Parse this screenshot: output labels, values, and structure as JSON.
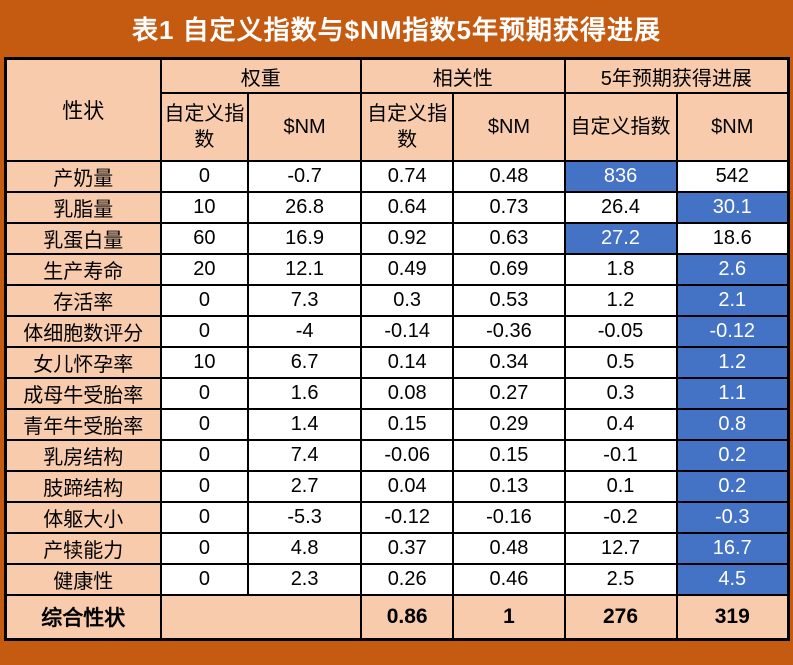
{
  "colors": {
    "page_background_orange": "#C55A11",
    "header_peach": "#F8CBAD",
    "highlight_blue": "#4472C4",
    "highlight_text": "#FFFFFF",
    "grid_border": "#000000",
    "title_text": "#FFFFFF"
  },
  "chart_data": {
    "type": "table",
    "title": "表1 自定义指数与$NM指数5年预期获得进展",
    "row_header": "性状",
    "column_groups": [
      "权重",
      "相关性",
      "5年预期获得进展"
    ],
    "subcolumns": [
      "自定义指数",
      "$NM",
      "自定义指数",
      "$NM",
      "自定义指数",
      "$NM"
    ],
    "rows": [
      {
        "trait": "产奶量",
        "weight_custom": "0",
        "weight_nm": "-0.7",
        "corr_custom": "0.74",
        "corr_nm": "0.48",
        "prog_custom": "836",
        "prog_nm": "542",
        "highlight": "prog_custom"
      },
      {
        "trait": "乳脂量",
        "weight_custom": "10",
        "weight_nm": "26.8",
        "corr_custom": "0.64",
        "corr_nm": "0.73",
        "prog_custom": "26.4",
        "prog_nm": "30.1",
        "highlight": "prog_nm"
      },
      {
        "trait": "乳蛋白量",
        "weight_custom": "60",
        "weight_nm": "16.9",
        "corr_custom": "0.92",
        "corr_nm": "0.63",
        "prog_custom": "27.2",
        "prog_nm": "18.6",
        "highlight": "prog_custom"
      },
      {
        "trait": "生产寿命",
        "weight_custom": "20",
        "weight_nm": "12.1",
        "corr_custom": "0.49",
        "corr_nm": "0.69",
        "prog_custom": "1.8",
        "prog_nm": "2.6",
        "highlight": "prog_nm"
      },
      {
        "trait": "存活率",
        "weight_custom": "0",
        "weight_nm": "7.3",
        "corr_custom": "0.3",
        "corr_nm": "0.53",
        "prog_custom": "1.2",
        "prog_nm": "2.1",
        "highlight": "prog_nm"
      },
      {
        "trait": "体细胞数评分",
        "weight_custom": "0",
        "weight_nm": "-4",
        "corr_custom": "-0.14",
        "corr_nm": "-0.36",
        "prog_custom": "-0.05",
        "prog_nm": "-0.12",
        "highlight": "prog_nm"
      },
      {
        "trait": "女儿怀孕率",
        "weight_custom": "10",
        "weight_nm": "6.7",
        "corr_custom": "0.14",
        "corr_nm": "0.34",
        "prog_custom": "0.5",
        "prog_nm": "1.2",
        "highlight": "prog_nm"
      },
      {
        "trait": "成母牛受胎率",
        "weight_custom": "0",
        "weight_nm": "1.6",
        "corr_custom": "0.08",
        "corr_nm": "0.27",
        "prog_custom": "0.3",
        "prog_nm": "1.1",
        "highlight": "prog_nm"
      },
      {
        "trait": "青年牛受胎率",
        "weight_custom": "0",
        "weight_nm": "1.4",
        "corr_custom": "0.15",
        "corr_nm": "0.29",
        "prog_custom": "0.4",
        "prog_nm": "0.8",
        "highlight": "prog_nm"
      },
      {
        "trait": "乳房结构",
        "weight_custom": "0",
        "weight_nm": "7.4",
        "corr_custom": "-0.06",
        "corr_nm": "0.15",
        "prog_custom": "-0.1",
        "prog_nm": "0.2",
        "highlight": "prog_nm"
      },
      {
        "trait": "肢蹄结构",
        "weight_custom": "0",
        "weight_nm": "2.7",
        "corr_custom": "0.04",
        "corr_nm": "0.13",
        "prog_custom": "0.1",
        "prog_nm": "0.2",
        "highlight": "prog_nm"
      },
      {
        "trait": "体躯大小",
        "weight_custom": "0",
        "weight_nm": "-5.3",
        "corr_custom": "-0.12",
        "corr_nm": "-0.16",
        "prog_custom": "-0.2",
        "prog_nm": "-0.3",
        "highlight": "prog_nm"
      },
      {
        "trait": "产犊能力",
        "weight_custom": "0",
        "weight_nm": "4.8",
        "corr_custom": "0.37",
        "corr_nm": "0.48",
        "prog_custom": "12.7",
        "prog_nm": "16.7",
        "highlight": "prog_nm"
      },
      {
        "trait": "健康性",
        "weight_custom": "0",
        "weight_nm": "2.3",
        "corr_custom": "0.26",
        "corr_nm": "0.46",
        "prog_custom": "2.5",
        "prog_nm": "4.5",
        "highlight": "prog_nm"
      }
    ],
    "summary": {
      "trait": "综合性状",
      "weight_merged": "",
      "corr_custom": "0.86",
      "corr_nm": "1",
      "prog_custom": "276",
      "prog_nm": "319"
    }
  }
}
